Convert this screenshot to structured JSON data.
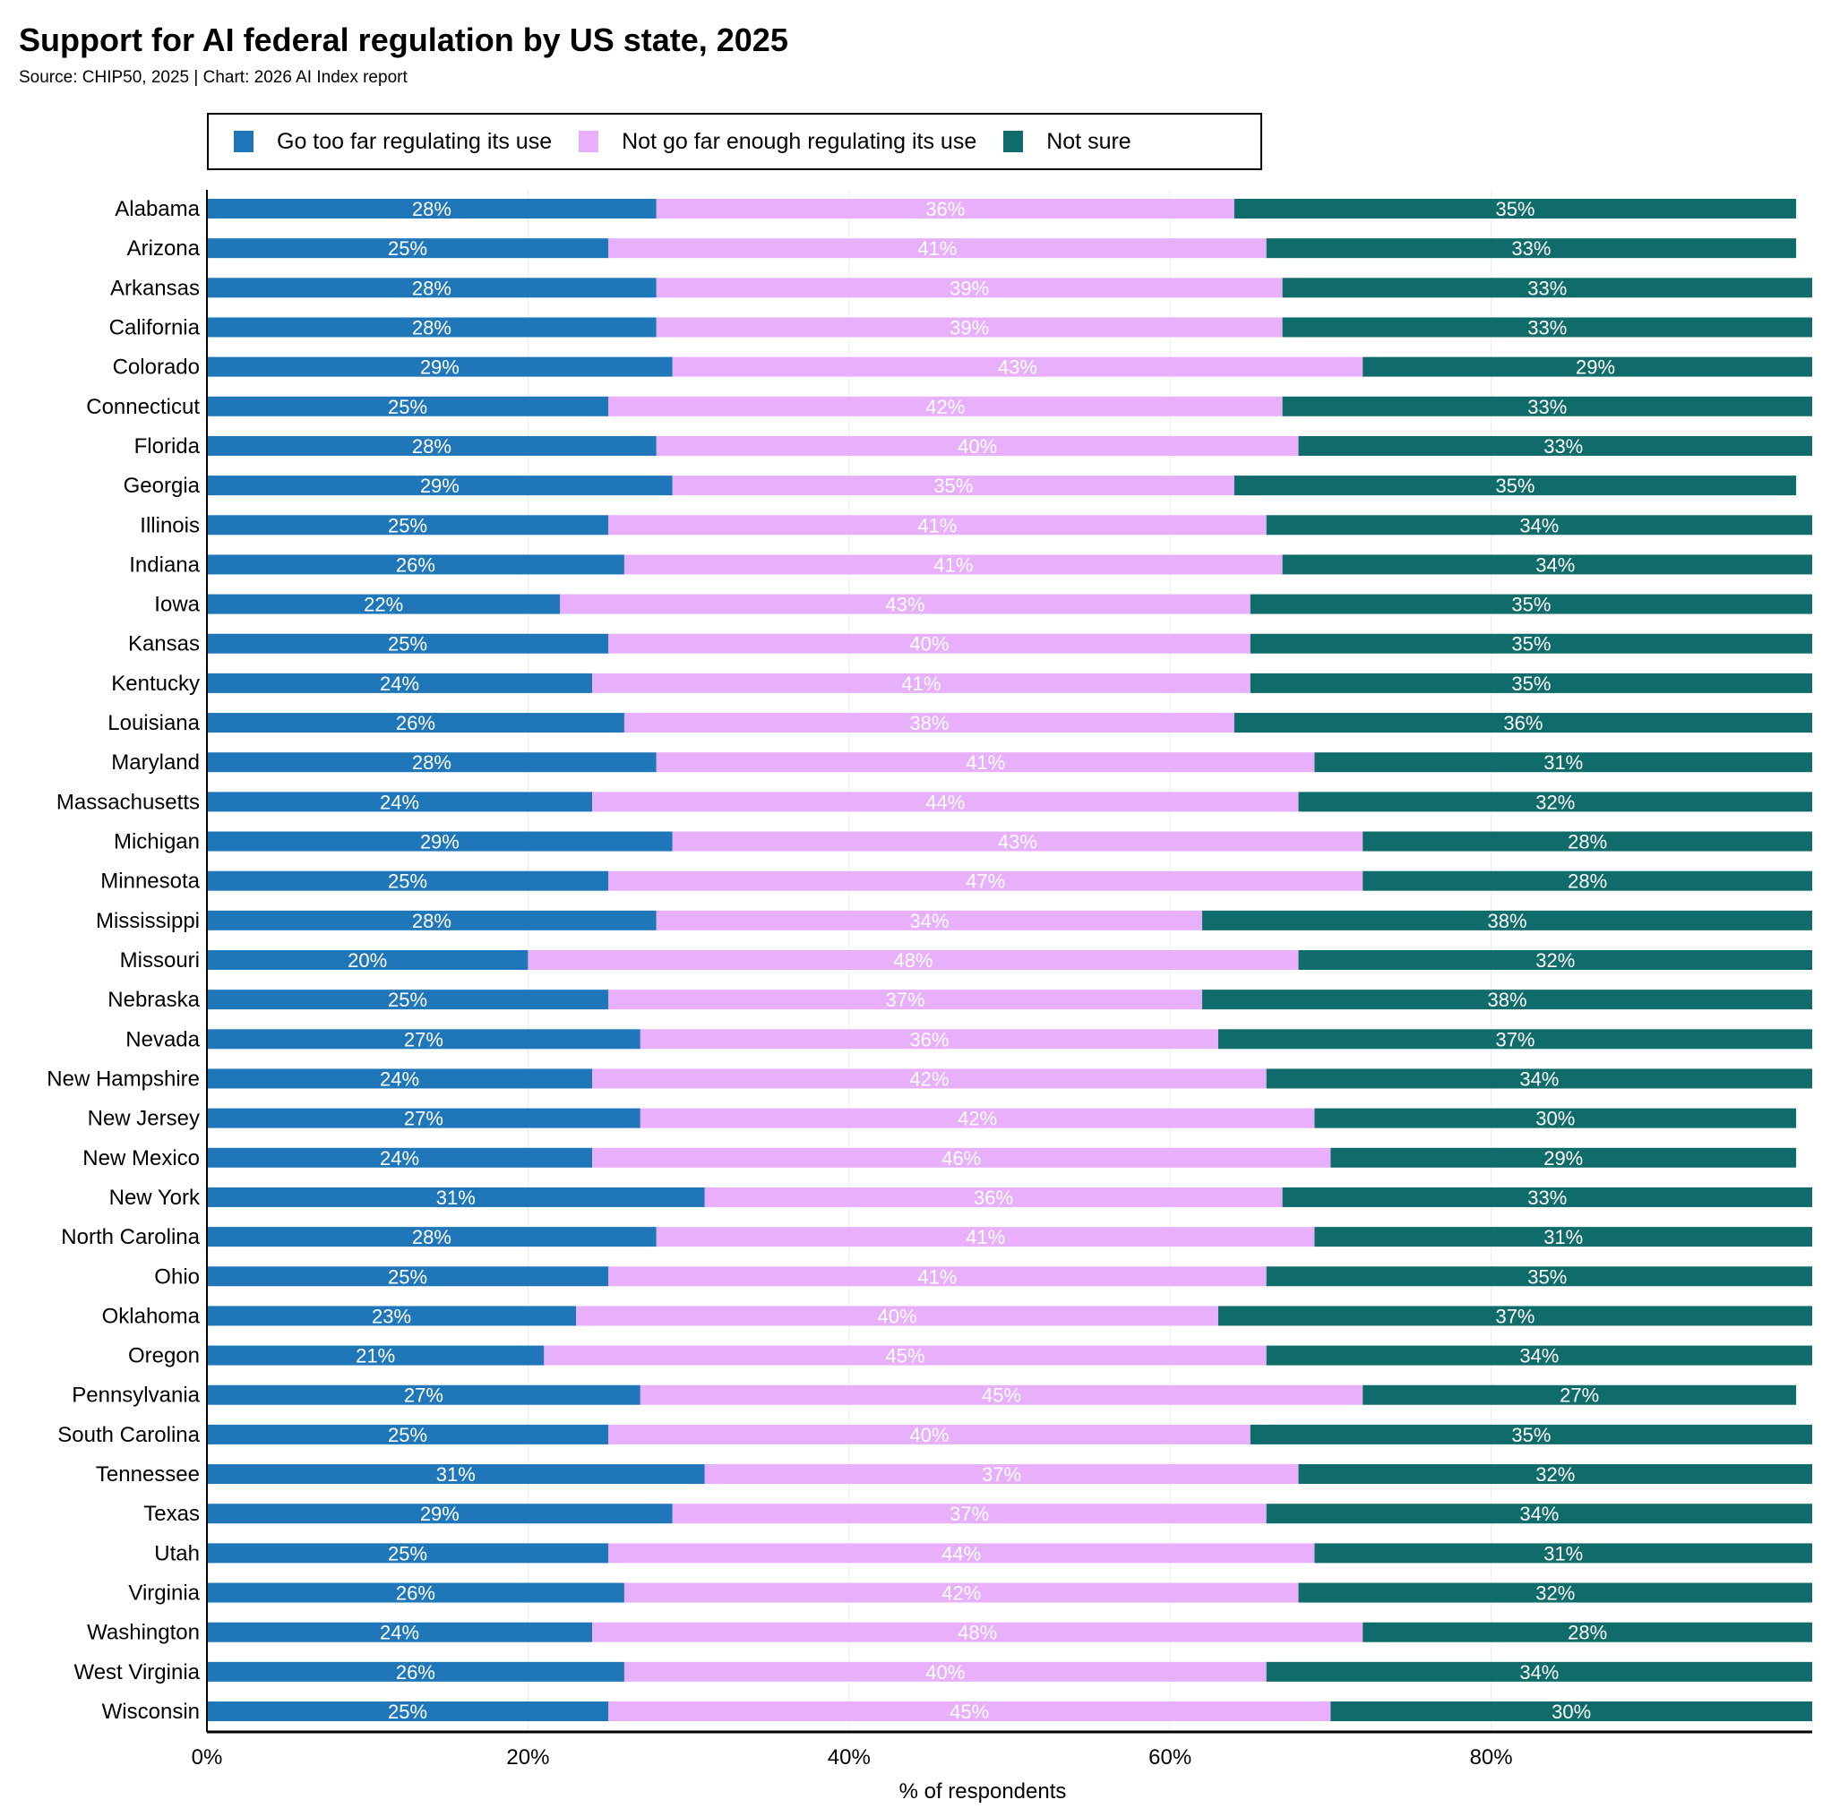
{
  "chart_data": {
    "type": "bar",
    "orientation": "horizontal",
    "stacked": true,
    "title": "Support for AI federal regulation by US state, 2025",
    "subtitle": "Source: CHIP50, 2025 | Chart: 2026 AI Index report",
    "xlabel": "% of respondents",
    "ylabel": "",
    "xlim": [
      0,
      100
    ],
    "xticks": [
      "0%",
      "20%",
      "40%",
      "60%",
      "80%"
    ],
    "grid": true,
    "legend_position": "top",
    "categories": [
      "Alabama",
      "Arizona",
      "Arkansas",
      "California",
      "Colorado",
      "Connecticut",
      "Florida",
      "Georgia",
      "Illinois",
      "Indiana",
      "Iowa",
      "Kansas",
      "Kentucky",
      "Louisiana",
      "Maryland",
      "Massachusetts",
      "Michigan",
      "Minnesota",
      "Mississippi",
      "Missouri",
      "Nebraska",
      "Nevada",
      "New Hampshire",
      "New Jersey",
      "New Mexico",
      "New York",
      "North Carolina",
      "Ohio",
      "Oklahoma",
      "Oregon",
      "Pennsylvania",
      "South Carolina",
      "Tennessee",
      "Texas",
      "Utah",
      "Virginia",
      "Washington",
      "West Virginia",
      "Wisconsin"
    ],
    "series": [
      {
        "name": "Go too far regulating its use",
        "color": "#1f77b9",
        "values": [
          28,
          25,
          28,
          28,
          29,
          25,
          28,
          29,
          25,
          26,
          22,
          25,
          24,
          26,
          28,
          24,
          29,
          25,
          28,
          20,
          25,
          27,
          24,
          27,
          24,
          31,
          28,
          25,
          23,
          21,
          27,
          25,
          31,
          29,
          25,
          26,
          24,
          26,
          25
        ]
      },
      {
        "name": "Not go far enough regulating its use",
        "color": "#e8b0fb",
        "values": [
          36,
          41,
          39,
          39,
          43,
          42,
          40,
          35,
          41,
          41,
          43,
          40,
          41,
          38,
          41,
          44,
          43,
          47,
          34,
          48,
          37,
          36,
          42,
          42,
          46,
          36,
          41,
          41,
          40,
          45,
          45,
          40,
          37,
          37,
          44,
          42,
          48,
          40,
          45
        ]
      },
      {
        "name": "Not sure",
        "color": "#106b6b",
        "values": [
          35,
          33,
          33,
          33,
          29,
          33,
          33,
          35,
          34,
          34,
          35,
          35,
          35,
          36,
          31,
          32,
          28,
          28,
          38,
          32,
          38,
          37,
          34,
          30,
          29,
          33,
          31,
          35,
          37,
          34,
          27,
          35,
          32,
          34,
          31,
          32,
          28,
          34,
          30
        ]
      }
    ]
  }
}
